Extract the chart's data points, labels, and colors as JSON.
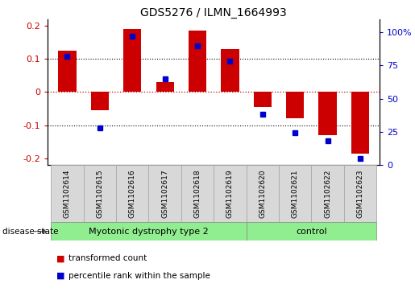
{
  "title": "GDS5276 / ILMN_1664993",
  "samples": [
    "GSM1102614",
    "GSM1102615",
    "GSM1102616",
    "GSM1102617",
    "GSM1102618",
    "GSM1102619",
    "GSM1102620",
    "GSM1102621",
    "GSM1102622",
    "GSM1102623"
  ],
  "red_values": [
    0.125,
    -0.055,
    0.19,
    0.03,
    0.185,
    0.13,
    -0.045,
    -0.08,
    -0.13,
    -0.185
  ],
  "blue_values_pct": [
    82,
    28,
    97,
    65,
    90,
    78,
    38,
    24,
    18,
    5
  ],
  "group1_samples": 6,
  "group2_samples": 4,
  "group1_label": "Myotonic dystrophy type 2",
  "group2_label": "control",
  "group_color": "#90EE90",
  "ylim_left": [
    -0.22,
    0.22
  ],
  "ylim_right": [
    0,
    110
  ],
  "yticks_left": [
    -0.2,
    -0.1,
    0.0,
    0.1,
    0.2
  ],
  "ytick_labels_left": [
    "-0.2",
    "-0.1",
    "0",
    "0.1",
    "0.2"
  ],
  "yticks_right": [
    0,
    25,
    50,
    75,
    100
  ],
  "ytick_labels_right": [
    "0",
    "25",
    "50",
    "75",
    "100%"
  ],
  "red_color": "#CC0000",
  "blue_color": "#0000CC",
  "zero_line_color": "#CC0000",
  "dotted_line_color": "black",
  "bar_width": 0.55,
  "legend_red": "transformed count",
  "legend_blue": "percentile rank within the sample",
  "disease_state_label": "disease state",
  "sample_bg_color": "#D8D8D8",
  "sample_border_color": "#AAAAAA"
}
